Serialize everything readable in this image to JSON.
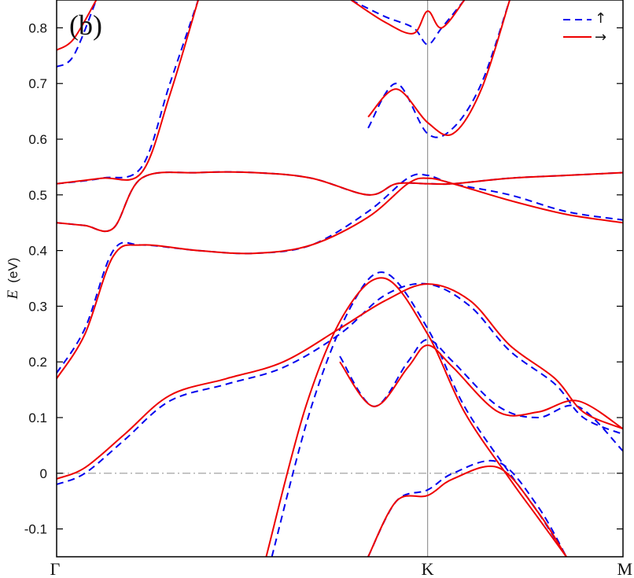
{
  "chart_data": {
    "type": "line",
    "panel_label": "(b)",
    "ylabel": {
      "symbol": "E",
      "unit": "(eV)"
    },
    "ylim": [
      -0.15,
      0.85
    ],
    "yticks": [
      -0.1,
      0,
      0.1,
      0.2,
      0.3,
      0.4,
      0.5,
      0.6,
      0.7,
      0.8
    ],
    "ytick_labels": [
      "-0.1",
      "0",
      "0.1",
      "0.2",
      "0.3",
      "0.4",
      "0.5",
      "0.6",
      "0.7",
      "0.8"
    ],
    "xlim": [
      0,
      1
    ],
    "xticks": [
      {
        "pos": 0,
        "label": "Γ"
      },
      {
        "pos": 0.655,
        "label": "K"
      },
      {
        "pos": 1,
        "label": "M"
      }
    ],
    "fermi_level": 0,
    "grid": false,
    "legend": {
      "placement": "top-right"
    },
    "colors": {
      "up": "#0000ee",
      "down": "#ee0000",
      "axis": "#000000",
      "guide": "#999999"
    },
    "series": [
      {
        "name": "↑",
        "style": "dashed",
        "bands": [
          [
            [
              0,
              -0.02
            ],
            [
              0.05,
              0.0
            ],
            [
              0.12,
              0.06
            ],
            [
              0.2,
              0.13
            ],
            [
              0.3,
              0.16
            ],
            [
              0.4,
              0.19
            ],
            [
              0.5,
              0.25
            ],
            [
              0.58,
              0.32
            ],
            [
              0.655,
              0.34
            ],
            [
              0.73,
              0.3
            ],
            [
              0.8,
              0.22
            ],
            [
              0.88,
              0.16
            ],
            [
              0.93,
              0.1
            ],
            [
              1,
              0.07
            ]
          ],
          [
            [
              0,
              0.18
            ],
            [
              0.05,
              0.26
            ],
            [
              0.1,
              0.4
            ],
            [
              0.15,
              0.41
            ],
            [
              0.25,
              0.4
            ],
            [
              0.35,
              0.395
            ],
            [
              0.45,
              0.41
            ],
            [
              0.55,
              0.47
            ],
            [
              0.62,
              0.53
            ],
            [
              0.655,
              0.535
            ],
            [
              0.7,
              0.52
            ],
            [
              0.8,
              0.5
            ],
            [
              0.9,
              0.47
            ],
            [
              1,
              0.455
            ]
          ],
          [
            [
              0,
              0.45
            ],
            [
              0.05,
              0.445
            ],
            [
              0.1,
              0.44
            ],
            [
              0.15,
              0.53
            ],
            [
              0.25,
              0.54
            ],
            [
              0.35,
              0.54
            ],
            [
              0.45,
              0.53
            ],
            [
              0.55,
              0.5
            ],
            [
              0.6,
              0.52
            ],
            [
              0.655,
              0.52
            ],
            [
              0.7,
              0.52
            ],
            [
              0.8,
              0.53
            ],
            [
              0.9,
              0.535
            ],
            [
              1,
              0.54
            ]
          ],
          [
            [
              0,
              0.52
            ],
            [
              0.08,
              0.53
            ],
            [
              0.15,
              0.55
            ],
            [
              0.2,
              0.7
            ],
            [
              0.25,
              0.85
            ]
          ],
          [
            [
              0,
              0.73
            ],
            [
              0.03,
              0.75
            ],
            [
              0.07,
              0.85
            ]
          ],
          [
            [
              0.38,
              -0.15
            ],
            [
              0.45,
              0.12
            ],
            [
              0.52,
              0.3
            ],
            [
              0.58,
              0.36
            ],
            [
              0.655,
              0.26
            ],
            [
              0.72,
              0.12
            ],
            [
              0.8,
              0.0
            ],
            [
              0.85,
              -0.07
            ],
            [
              0.9,
              -0.15
            ]
          ],
          [
            [
              0.55,
              -0.15
            ],
            [
              0.6,
              -0.05
            ],
            [
              0.655,
              -0.03
            ],
            [
              0.7,
              0.0
            ],
            [
              0.78,
              0.02
            ],
            [
              0.85,
              -0.06
            ],
            [
              0.9,
              -0.15
            ]
          ],
          [
            [
              0.5,
              0.21
            ],
            [
              0.56,
              0.12
            ],
            [
              0.62,
              0.2
            ],
            [
              0.655,
              0.24
            ],
            [
              0.7,
              0.2
            ],
            [
              0.78,
              0.12
            ],
            [
              0.85,
              0.1
            ],
            [
              0.92,
              0.12
            ],
            [
              1,
              0.04
            ]
          ],
          [
            [
              0.52,
              0.85
            ],
            [
              0.58,
              0.82
            ],
            [
              0.63,
              0.8
            ],
            [
              0.655,
              0.77
            ],
            [
              0.68,
              0.8
            ],
            [
              0.72,
              0.85
            ]
          ],
          [
            [
              0.55,
              0.62
            ],
            [
              0.6,
              0.7
            ],
            [
              0.655,
              0.61
            ],
            [
              0.7,
              0.62
            ],
            [
              0.75,
              0.7
            ],
            [
              0.8,
              0.85
            ]
          ]
        ]
      },
      {
        "name": "→",
        "style": "solid",
        "bands": [
          [
            [
              0,
              -0.01
            ],
            [
              0.05,
              0.01
            ],
            [
              0.12,
              0.07
            ],
            [
              0.2,
              0.14
            ],
            [
              0.3,
              0.17
            ],
            [
              0.4,
              0.2
            ],
            [
              0.5,
              0.26
            ],
            [
              0.58,
              0.31
            ],
            [
              0.655,
              0.34
            ],
            [
              0.73,
              0.31
            ],
            [
              0.8,
              0.23
            ],
            [
              0.88,
              0.17
            ],
            [
              0.93,
              0.11
            ],
            [
              1,
              0.08
            ]
          ],
          [
            [
              0,
              0.17
            ],
            [
              0.05,
              0.25
            ],
            [
              0.1,
              0.39
            ],
            [
              0.15,
              0.41
            ],
            [
              0.25,
              0.4
            ],
            [
              0.35,
              0.395
            ],
            [
              0.45,
              0.41
            ],
            [
              0.55,
              0.46
            ],
            [
              0.62,
              0.52
            ],
            [
              0.655,
              0.53
            ],
            [
              0.7,
              0.52
            ],
            [
              0.8,
              0.49
            ],
            [
              0.9,
              0.465
            ],
            [
              1,
              0.45
            ]
          ],
          [
            [
              0,
              0.45
            ],
            [
              0.05,
              0.445
            ],
            [
              0.1,
              0.44
            ],
            [
              0.15,
              0.53
            ],
            [
              0.25,
              0.54
            ],
            [
              0.35,
              0.54
            ],
            [
              0.45,
              0.53
            ],
            [
              0.55,
              0.5
            ],
            [
              0.6,
              0.52
            ],
            [
              0.655,
              0.52
            ],
            [
              0.7,
              0.52
            ],
            [
              0.8,
              0.53
            ],
            [
              0.9,
              0.535
            ],
            [
              1,
              0.54
            ]
          ],
          [
            [
              0,
              0.52
            ],
            [
              0.08,
              0.53
            ],
            [
              0.15,
              0.54
            ],
            [
              0.2,
              0.68
            ],
            [
              0.25,
              0.85
            ]
          ],
          [
            [
              0,
              0.76
            ],
            [
              0.03,
              0.78
            ],
            [
              0.07,
              0.85
            ]
          ],
          [
            [
              0.37,
              -0.15
            ],
            [
              0.44,
              0.12
            ],
            [
              0.51,
              0.29
            ],
            [
              0.58,
              0.35
            ],
            [
              0.655,
              0.25
            ],
            [
              0.72,
              0.11
            ],
            [
              0.8,
              -0.01
            ],
            [
              0.85,
              -0.08
            ],
            [
              0.9,
              -0.15
            ]
          ],
          [
            [
              0.55,
              -0.15
            ],
            [
              0.6,
              -0.05
            ],
            [
              0.655,
              -0.04
            ],
            [
              0.7,
              -0.01
            ],
            [
              0.78,
              0.01
            ],
            [
              0.85,
              -0.07
            ],
            [
              0.9,
              -0.15
            ]
          ],
          [
            [
              0.5,
              0.2
            ],
            [
              0.56,
              0.12
            ],
            [
              0.62,
              0.19
            ],
            [
              0.655,
              0.23
            ],
            [
              0.7,
              0.19
            ],
            [
              0.78,
              0.11
            ],
            [
              0.85,
              0.11
            ],
            [
              0.92,
              0.13
            ],
            [
              1,
              0.08
            ]
          ],
          [
            [
              0.52,
              0.85
            ],
            [
              0.58,
              0.81
            ],
            [
              0.63,
              0.79
            ],
            [
              0.655,
              0.83
            ],
            [
              0.68,
              0.8
            ],
            [
              0.72,
              0.85
            ]
          ],
          [
            [
              0.55,
              0.64
            ],
            [
              0.6,
              0.69
            ],
            [
              0.655,
              0.63
            ],
            [
              0.7,
              0.61
            ],
            [
              0.75,
              0.69
            ],
            [
              0.8,
              0.85
            ]
          ]
        ]
      }
    ]
  }
}
